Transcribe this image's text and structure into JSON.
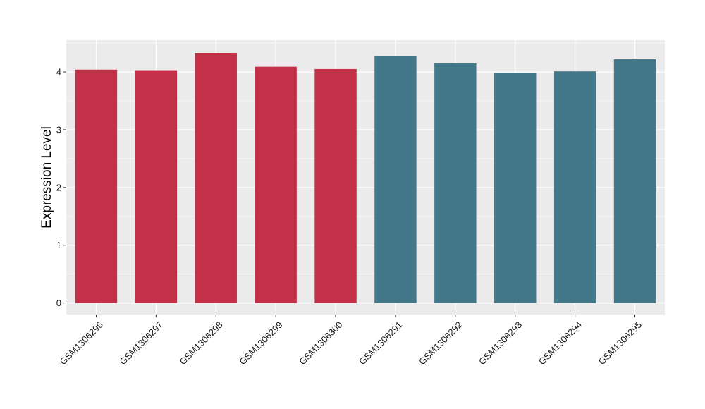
{
  "chart_data": {
    "type": "bar",
    "title": "",
    "xlabel": "",
    "ylabel": "Expression Level",
    "ylim": [
      -0.2,
      4.55
    ],
    "yticks": [
      0,
      1,
      2,
      3,
      4
    ],
    "ytick_labels": [
      "0",
      "1",
      "2",
      "3",
      "4"
    ],
    "grid": true,
    "legend": "none",
    "categories": [
      "GSM1306296",
      "GSM1306297",
      "GSM1306298",
      "GSM1306299",
      "GSM1306300",
      "GSM1306291",
      "GSM1306292",
      "GSM1306293",
      "GSM1306294",
      "GSM1306295"
    ],
    "values": [
      4.04,
      4.03,
      4.33,
      4.09,
      4.05,
      4.27,
      4.15,
      3.98,
      4.01,
      4.22
    ],
    "groups": [
      0,
      0,
      0,
      0,
      0,
      1,
      1,
      1,
      1,
      1
    ],
    "colors": [
      "#c33149",
      "#42788a"
    ],
    "panel_background": "#ebebeb",
    "grid_color": "#ffffff"
  }
}
